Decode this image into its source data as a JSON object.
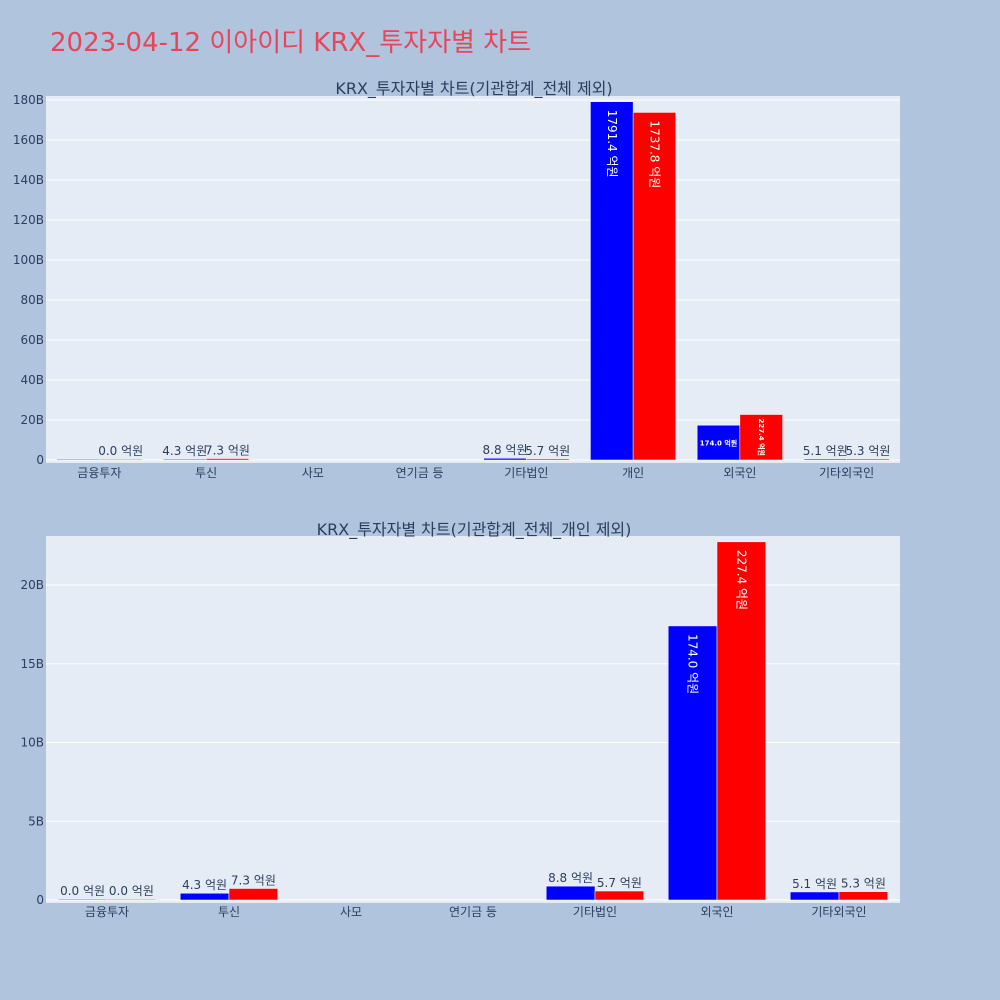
{
  "page": {
    "title": "2023-04-12 이아이디 KRX_투자자별 차트"
  },
  "colors": {
    "background": "#b0c4de",
    "plot_background": "#e5ecf6",
    "title": "#e8455a",
    "series_a": "#0000ff",
    "series_b": "#ff0000"
  },
  "chart_data": [
    {
      "type": "bar",
      "title": "KRX_투자자별 차트(기관합계_전체 제외)",
      "xlabel": "",
      "ylabel": "",
      "ylim": [
        0,
        190000000000
      ],
      "yticks": [
        0,
        20000000000,
        40000000000,
        60000000000,
        80000000000,
        100000000000,
        120000000000,
        140000000000,
        160000000000,
        180000000000
      ],
      "ytick_labels": [
        "0",
        "20B",
        "40B",
        "60B",
        "80B",
        "100B",
        "120B",
        "140B",
        "160B",
        "180B"
      ],
      "grid": true,
      "categories": [
        "금융투자",
        "투신",
        "사모",
        "연기금 등",
        "기타법인",
        "개인",
        "외국인",
        "기타외국인"
      ],
      "series": [
        {
          "color": "#0000ff",
          "values": [
            0,
            430000000,
            null,
            null,
            880000000,
            179140000000,
            17400000000,
            510000000
          ],
          "labels": [
            "",
            "4.3 억원",
            "",
            "",
            "8.8 억원",
            "1791.4 억원",
            "174.0 억원",
            "5.1 억원"
          ]
        },
        {
          "color": "#ff0000",
          "values": [
            0,
            730000000,
            null,
            null,
            570000000,
            173780000000,
            22740000000,
            530000000
          ],
          "labels": [
            "0.0 억원",
            "7.3 억원",
            "",
            "",
            "5.7 억원",
            "1737.8 억원",
            "227.4 억원",
            "5.3 억원"
          ]
        }
      ]
    },
    {
      "type": "bar",
      "title": "KRX_투자자별 차트(기관합계_전체_개인 제외)",
      "xlabel": "",
      "ylabel": "",
      "ylim": [
        0,
        24000000000
      ],
      "yticks": [
        0,
        5000000000,
        10000000000,
        15000000000,
        20000000000
      ],
      "ytick_labels": [
        "0",
        "5B",
        "10B",
        "15B",
        "20B"
      ],
      "grid": true,
      "categories": [
        "금융투자",
        "투신",
        "사모",
        "연기금 등",
        "기타법인",
        "외국인",
        "기타외국인"
      ],
      "series": [
        {
          "color": "#0000ff",
          "values": [
            0,
            430000000,
            null,
            null,
            880000000,
            17400000000,
            510000000
          ],
          "labels": [
            "0.0 억원",
            "4.3 억원",
            "",
            "",
            "8.8 억원",
            "174.0 억원",
            "5.1 억원"
          ]
        },
        {
          "color": "#ff0000",
          "values": [
            0,
            730000000,
            null,
            null,
            570000000,
            22740000000,
            530000000
          ],
          "labels": [
            "0.0 억원",
            "7.3 억원",
            "",
            "",
            "5.7 억원",
            "227.4 억원",
            "5.3 억원"
          ]
        }
      ]
    }
  ]
}
